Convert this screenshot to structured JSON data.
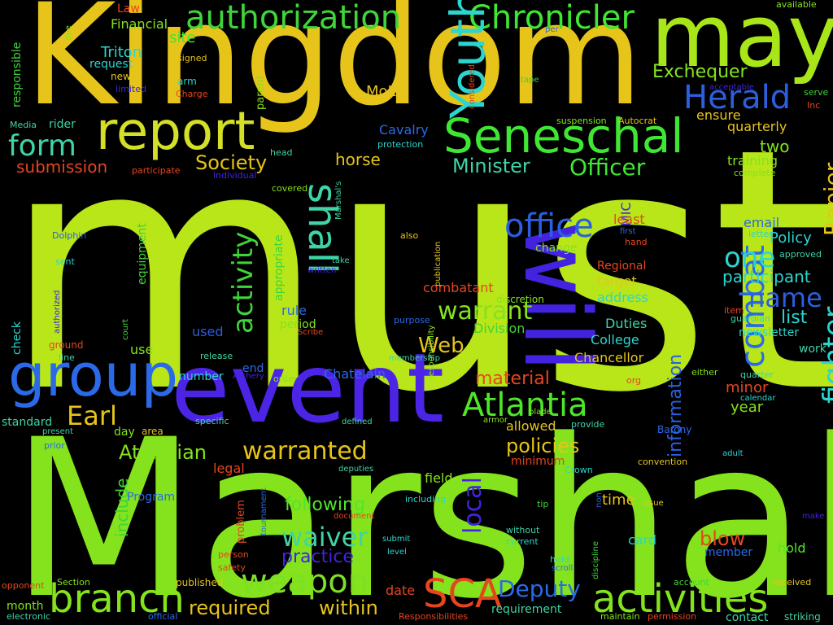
{
  "words": [
    {
      "text": "must",
      "color": "#b8e619"
    },
    {
      "text": "Marshal",
      "color": "#84e31c"
    },
    {
      "text": "Kingdom",
      "color": "#e6c41a"
    },
    {
      "text": "event",
      "color": "#4b24e6"
    },
    {
      "text": "may",
      "color": "#a8e619"
    },
    {
      "text": "will",
      "color": "#4322e0"
    },
    {
      "text": "report",
      "color": "#d4e025"
    },
    {
      "text": "Seneschal",
      "color": "#3fe634"
    },
    {
      "text": "group",
      "color": "#2a6ae8"
    },
    {
      "text": "authorization",
      "color": "#3fd43a"
    },
    {
      "text": "Chronicler",
      "color": "#3fe634"
    },
    {
      "text": "Youth",
      "color": "#2ad6cf"
    },
    {
      "text": "shall",
      "color": "#3fd4a8"
    },
    {
      "text": "activities",
      "color": "#84e31c"
    },
    {
      "text": "branch",
      "color": "#84e31c"
    },
    {
      "text": "weapon",
      "color": "#7ee024"
    },
    {
      "text": "SCA",
      "color": "#e6451f"
    },
    {
      "text": "Atlantia",
      "color": "#4fe62a"
    },
    {
      "text": "Herald",
      "color": "#2a5fe0"
    },
    {
      "text": "office",
      "color": "#2a5fe0"
    },
    {
      "text": "combat",
      "color": "#2a6ae8"
    },
    {
      "text": "fighter",
      "color": "#2ad6cf"
    },
    {
      "text": "Rapier",
      "color": "#e6c41a"
    },
    {
      "text": "form",
      "color": "#3fd4a8"
    },
    {
      "text": "activity",
      "color": "#3fd43a"
    },
    {
      "text": "Earl",
      "color": "#e6c41a"
    },
    {
      "text": "warranted",
      "color": "#e6c41a"
    },
    {
      "text": "waiver",
      "color": "#3fd4a8"
    },
    {
      "text": "one",
      "color": "#2ad6cf"
    },
    {
      "text": "name",
      "color": "#2a5fe0"
    },
    {
      "text": "information",
      "color": "#2a5fe0"
    },
    {
      "text": "warrant",
      "color": "#84e31c"
    },
    {
      "text": "Minister",
      "color": "#3fd4a8"
    },
    {
      "text": "Officer",
      "color": "#3fe634"
    },
    {
      "text": "Society",
      "color": "#e6c41a"
    },
    {
      "text": "Atlantian",
      "color": "#84e31c"
    },
    {
      "text": "policies",
      "color": "#e6c41a"
    },
    {
      "text": "Deputy",
      "color": "#2a6ae8"
    },
    {
      "text": "local",
      "color": "#4322e0"
    },
    {
      "text": "Web",
      "color": "#e6c41a"
    },
    {
      "text": "material",
      "color": "#e6451f"
    },
    {
      "text": "required",
      "color": "#e6c41a"
    },
    {
      "text": "within",
      "color": "#e6c41a"
    },
    {
      "text": "practice",
      "color": "#4322e0"
    },
    {
      "text": "following",
      "color": "#4fe62a"
    },
    {
      "text": "blow",
      "color": "#e6451f"
    },
    {
      "text": "Exchequer",
      "color": "#84e31c"
    },
    {
      "text": "Triton",
      "color": "#2ad6cf"
    },
    {
      "text": "Financial",
      "color": "#84e31c"
    },
    {
      "text": "submission",
      "color": "#e6451f"
    },
    {
      "text": "horse",
      "color": "#e6c41a"
    },
    {
      "text": "Cavalry",
      "color": "#2a6ae8"
    },
    {
      "text": "site",
      "color": "#3fe634"
    },
    {
      "text": "MoL",
      "color": "#e6c41a"
    },
    {
      "text": "combatant",
      "color": "#e6451f"
    },
    {
      "text": "Policy",
      "color": "#2ad6cf"
    },
    {
      "text": "participant",
      "color": "#2ad6cf"
    },
    {
      "text": "list",
      "color": "#2ad6cf"
    },
    {
      "text": "two",
      "color": "#84e31c"
    },
    {
      "text": "quarterly",
      "color": "#e6c41a"
    },
    {
      "text": "training",
      "color": "#84e31c"
    },
    {
      "text": "ensure",
      "color": "#e6c41a"
    },
    {
      "text": "MIC",
      "color": "#4322e0"
    },
    {
      "text": "least",
      "color": "#e6451f"
    },
    {
      "text": "email",
      "color": "#2a6ae8"
    },
    {
      "text": "target",
      "color": "#e6c41a"
    },
    {
      "text": "address",
      "color": "#2ad6cf"
    },
    {
      "text": "Duties",
      "color": "#3fd4a8"
    },
    {
      "text": "College",
      "color": "#2ad6cf"
    },
    {
      "text": "Chancellor",
      "color": "#e6c41a"
    },
    {
      "text": "Division",
      "color": "#3fd43a"
    },
    {
      "text": "change",
      "color": "#84e31c"
    },
    {
      "text": "Regional",
      "color": "#e6451f"
    },
    {
      "text": "Chatelain",
      "color": "#2a6ae8"
    },
    {
      "text": "minor",
      "color": "#e6451f"
    },
    {
      "text": "year",
      "color": "#84e31c"
    },
    {
      "text": "newsletter",
      "color": "#2ad6cf"
    },
    {
      "text": "work",
      "color": "#3fd4a8"
    },
    {
      "text": "allowed",
      "color": "#e6c41a"
    },
    {
      "text": "field",
      "color": "#84e31c"
    },
    {
      "text": "minimum",
      "color": "#e6451f"
    },
    {
      "text": "legal",
      "color": "#e6451f"
    },
    {
      "text": "include",
      "color": "#3fd43a"
    },
    {
      "text": "Program",
      "color": "#2a6ae8"
    },
    {
      "text": "time",
      "color": "#e6c41a"
    },
    {
      "text": "card",
      "color": "#2ad6cf"
    },
    {
      "text": "hold",
      "color": "#4fe62a"
    },
    {
      "text": "member",
      "color": "#2a6ae8"
    },
    {
      "text": "rule",
      "color": "#2a6ae8"
    },
    {
      "text": "period",
      "color": "#84e31c"
    },
    {
      "text": "used",
      "color": "#2a5fe0"
    },
    {
      "text": "number",
      "color": "#2ad6cf"
    },
    {
      "text": "end",
      "color": "#2a6ae8"
    },
    {
      "text": "use",
      "color": "#84e31c"
    },
    {
      "text": "appropriate",
      "color": "#3fd43a"
    },
    {
      "text": "equipment",
      "color": "#3fd43a"
    },
    {
      "text": "rider",
      "color": "#3fd4a8"
    },
    {
      "text": "responsible",
      "color": "#3fd43a"
    },
    {
      "text": "request",
      "color": "#2ad6cf"
    },
    {
      "text": "new",
      "color": "#e6c41a"
    },
    {
      "text": "arm",
      "color": "#2ad6cf"
    },
    {
      "text": "standard",
      "color": "#3fd4a8"
    },
    {
      "text": "day",
      "color": "#84e31c"
    },
    {
      "text": "area",
      "color": "#e6c41a"
    },
    {
      "text": "month",
      "color": "#84e31c"
    },
    {
      "text": "date",
      "color": "#e6451f"
    },
    {
      "text": "requirement",
      "color": "#3fd4a8"
    },
    {
      "text": "contact",
      "color": "#3fd4a8"
    },
    {
      "text": "striking",
      "color": "#3fd4a8"
    },
    {
      "text": "published",
      "color": "#e6c41a"
    },
    {
      "text": "check",
      "color": "#2ad6cf"
    },
    {
      "text": "ground",
      "color": "#e6451f"
    },
    {
      "text": "line",
      "color": "#3fd4a8"
    },
    {
      "text": "Media",
      "color": "#3fd4a8"
    },
    {
      "text": "Law",
      "color": "#e6451f"
    },
    {
      "text": "signed",
      "color": "#e6c41a"
    },
    {
      "text": "limited",
      "color": "#4322e0"
    },
    {
      "text": "Charge",
      "color": "#e6451f"
    },
    {
      "text": "parent",
      "color": "#84e31c"
    },
    {
      "text": "participate",
      "color": "#e6451f"
    },
    {
      "text": "individual",
      "color": "#4322e0"
    },
    {
      "text": "head",
      "color": "#3fd4a8"
    },
    {
      "text": "covered",
      "color": "#84e31c"
    },
    {
      "text": "protection",
      "color": "#2ad6cf"
    },
    {
      "text": "suspension",
      "color": "#84e31c"
    },
    {
      "text": "Autocrat",
      "color": "#e6c41a"
    },
    {
      "text": "Barony",
      "color": "#2a6ae8"
    },
    {
      "text": "available",
      "color": "#84e31c"
    },
    {
      "text": "serve",
      "color": "#3fd43a"
    },
    {
      "text": "Inc",
      "color": "#e6451f"
    },
    {
      "text": "acceptable",
      "color": "#4322e0"
    },
    {
      "text": "complete",
      "color": "#84e31c"
    },
    {
      "text": "letter",
      "color": "#2ad6cf"
    },
    {
      "text": "approved",
      "color": "#3fd4a8"
    },
    {
      "text": "item",
      "color": "#e6451f"
    },
    {
      "text": "guardian",
      "color": "#3fd4a8"
    },
    {
      "text": "quarter",
      "color": "#3fd4a8"
    },
    {
      "text": "calendar",
      "color": "#2ad6cf"
    },
    {
      "text": "adult",
      "color": "#2ad6cf"
    },
    {
      "text": "either",
      "color": "#84e31c"
    },
    {
      "text": "convention",
      "color": "#e6c41a"
    },
    {
      "text": "Crown",
      "color": "#2ad6cf"
    },
    {
      "text": "make",
      "color": "#4322e0"
    },
    {
      "text": "received",
      "color": "#e6c41a"
    },
    {
      "text": "account",
      "color": "#3fd43a"
    },
    {
      "text": "permission",
      "color": "#e6451f"
    },
    {
      "text": "maintain",
      "color": "#84e31c"
    },
    {
      "text": "Responsibilities",
      "color": "#e6451f"
    },
    {
      "text": "official",
      "color": "#2a6ae8"
    },
    {
      "text": "electronic",
      "color": "#3fd4a8"
    },
    {
      "text": "opponent",
      "color": "#e6451f"
    },
    {
      "text": "Section",
      "color": "#84e31c"
    },
    {
      "text": "safety",
      "color": "#e6451f"
    },
    {
      "text": "person",
      "color": "#e6451f"
    },
    {
      "text": "tournament",
      "color": "#2a6ae8"
    },
    {
      "text": "problem",
      "color": "#e6451f"
    },
    {
      "text": "deputies",
      "color": "#3fd4a8"
    },
    {
      "text": "document",
      "color": "#e6451f"
    },
    {
      "text": "submit",
      "color": "#2ad6cf"
    },
    {
      "text": "level",
      "color": "#2ad6cf"
    },
    {
      "text": "scroll",
      "color": "#2a6ae8"
    },
    {
      "text": "held",
      "color": "#3fd4a8"
    },
    {
      "text": "current",
      "color": "#2ad6cf"
    },
    {
      "text": "without",
      "color": "#3fd4a8"
    },
    {
      "text": "discipline",
      "color": "#3fd43a"
    },
    {
      "text": "tip",
      "color": "#3fd43a"
    },
    {
      "text": "non",
      "color": "#2a5fe0"
    },
    {
      "text": "issue",
      "color": "#e6c41a"
    },
    {
      "text": "including",
      "color": "#2ad6cf"
    },
    {
      "text": "defined",
      "color": "#3fd4a8"
    },
    {
      "text": "specific",
      "color": "#3fd4a8"
    },
    {
      "text": "provide",
      "color": "#3fd4a8"
    },
    {
      "text": "blade",
      "color": "#84e31c"
    },
    {
      "text": "armor",
      "color": "#84e31c"
    },
    {
      "text": "org",
      "color": "#e6451f"
    },
    {
      "text": "release",
      "color": "#3fd4a8"
    },
    {
      "text": "Archery",
      "color": "#4322e0"
    },
    {
      "text": "order",
      "color": "#84e31c"
    },
    {
      "text": "membership",
      "color": "#3fd4a8"
    },
    {
      "text": "responsibility",
      "color": "#84e31c"
    },
    {
      "text": "purpose",
      "color": "#2a6ae8"
    },
    {
      "text": "Scribe",
      "color": "#e6451f"
    },
    {
      "text": "court",
      "color": "#3fd43a"
    },
    {
      "text": "authorized",
      "color": "#4322e0"
    },
    {
      "text": "Dolphin",
      "color": "#2a5fe0"
    },
    {
      "text": "sent",
      "color": "#2ad6cf"
    },
    {
      "text": "also",
      "color": "#e6c41a"
    },
    {
      "text": "written",
      "color": "#4322e0"
    },
    {
      "text": "take",
      "color": "#3fd4a8"
    },
    {
      "text": "publication",
      "color": "#e6c41a"
    },
    {
      "text": "discretion",
      "color": "#84e31c"
    },
    {
      "text": "Marshal's",
      "color": "#3fd4a8"
    },
    {
      "text": "first",
      "color": "#2a6ae8"
    },
    {
      "text": "hand",
      "color": "#e6451f"
    },
    {
      "text": "considered",
      "color": "#e6451f"
    },
    {
      "text": "tape",
      "color": "#3fd43a"
    },
    {
      "text": "per",
      "color": "#2a6ae8"
    },
    {
      "text": "due",
      "color": "#84e31c"
    },
    {
      "text": "present",
      "color": "#3fd4a8"
    },
    {
      "text": "prior",
      "color": "#2a6ae8"
    }
  ]
}
